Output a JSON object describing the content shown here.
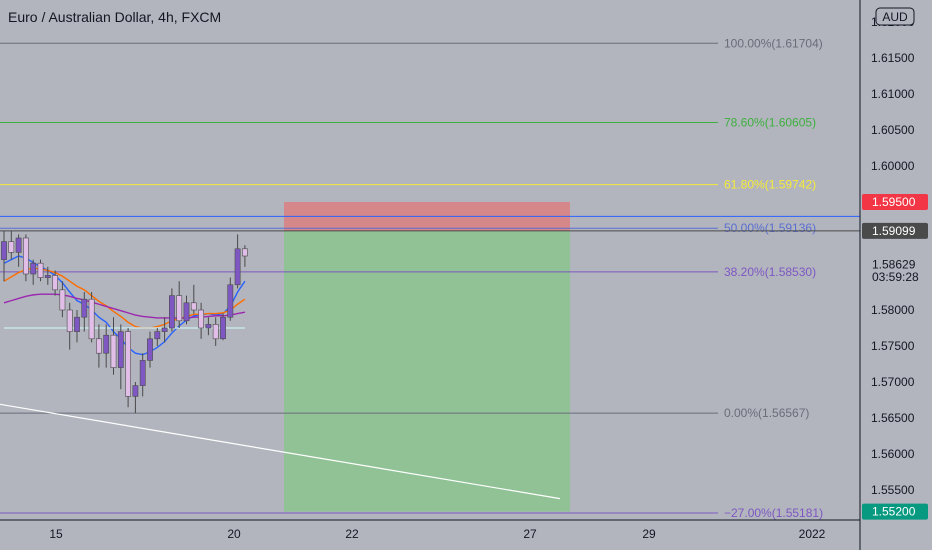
{
  "title": "Euro / Australian Dollar, 4h, FXCM",
  "currency_label": "AUD",
  "chart_data": {
    "type": "candlestick",
    "title": "Euro / Australian Dollar, 4h, FXCM",
    "y_axis": {
      "ticks": [
        "1.62000",
        "1.61500",
        "1.61000",
        "1.60500",
        "1.60000",
        "1.58000",
        "1.57500",
        "1.57000",
        "1.56500",
        "1.56000",
        "1.55500"
      ],
      "ylim": [
        1.55,
        1.62
      ]
    },
    "x_axis": {
      "ticks": [
        "15",
        "20",
        "22",
        "27",
        "29",
        "2022"
      ]
    },
    "price_labels": [
      {
        "text": "1.59500",
        "price": 1.595,
        "color": "#f23645"
      },
      {
        "text": "1.59099",
        "price": 1.59099,
        "color": "#4a4a4a"
      },
      {
        "text": "1.58629",
        "price": 1.58629,
        "color": "#b2b5be",
        "text_color": "#131722"
      },
      {
        "text": "03:59:28",
        "price": 1.5846,
        "color": "#b2b5be",
        "text_color": "#131722"
      },
      {
        "text": "1.55200",
        "price": 1.552,
        "color": "#089981"
      }
    ],
    "fibonacci": [
      {
        "label": "100.00%(1.61704)",
        "price": 1.61704,
        "color": "#6a6d78"
      },
      {
        "label": "78.60%(1.60605)",
        "price": 1.60605,
        "color": "#3eb03e"
      },
      {
        "label": "61.80%(1.59742)",
        "price": 1.59742,
        "color": "#f5ea3a"
      },
      {
        "label": "50.00%(1.59136)",
        "price": 1.59136,
        "color": "#5b6fd0"
      },
      {
        "label": "38.20%(1.58530)",
        "price": 1.5853,
        "color": "#7e57c2"
      },
      {
        "label": "0.00%(1.56567)",
        "price": 1.56567,
        "color": "#6a6d78"
      },
      {
        "label": "−27.00%(1.55181)",
        "price": 1.55181,
        "color": "#7e57c2"
      }
    ],
    "horizontal_lines": [
      {
        "price": 1.593,
        "color": "#2962ff"
      },
      {
        "price": 1.59099,
        "color": "#4a4a4a"
      }
    ],
    "position": {
      "entry": 1.59099,
      "stop": 1.595,
      "target": 1.552
    },
    "candles": [
      {
        "o": 1.587,
        "h": 1.591,
        "l": 1.584,
        "c": 1.5895
      },
      {
        "o": 1.5895,
        "h": 1.591,
        "l": 1.587,
        "c": 1.588
      },
      {
        "o": 1.588,
        "h": 1.5905,
        "l": 1.586,
        "c": 1.59
      },
      {
        "o": 1.59,
        "h": 1.5905,
        "l": 1.584,
        "c": 1.585
      },
      {
        "o": 1.585,
        "h": 1.587,
        "l": 1.5835,
        "c": 1.5865
      },
      {
        "o": 1.5865,
        "h": 1.587,
        "l": 1.584,
        "c": 1.5845
      },
      {
        "o": 1.5845,
        "h": 1.586,
        "l": 1.5835,
        "c": 1.5848
      },
      {
        "o": 1.5848,
        "h": 1.5855,
        "l": 1.582,
        "c": 1.5828
      },
      {
        "o": 1.5828,
        "h": 1.584,
        "l": 1.579,
        "c": 1.58
      },
      {
        "o": 1.58,
        "h": 1.581,
        "l": 1.5745,
        "c": 1.577
      },
      {
        "o": 1.577,
        "h": 1.58,
        "l": 1.5755,
        "c": 1.579
      },
      {
        "o": 1.579,
        "h": 1.5825,
        "l": 1.577,
        "c": 1.5815
      },
      {
        "o": 1.5815,
        "h": 1.5825,
        "l": 1.5755,
        "c": 1.576
      },
      {
        "o": 1.576,
        "h": 1.578,
        "l": 1.572,
        "c": 1.574
      },
      {
        "o": 1.574,
        "h": 1.578,
        "l": 1.572,
        "c": 1.5765
      },
      {
        "o": 1.5765,
        "h": 1.579,
        "l": 1.571,
        "c": 1.572
      },
      {
        "o": 1.572,
        "h": 1.578,
        "l": 1.569,
        "c": 1.577
      },
      {
        "o": 1.577,
        "h": 1.5775,
        "l": 1.5665,
        "c": 1.568
      },
      {
        "o": 1.568,
        "h": 1.57,
        "l": 1.56567,
        "c": 1.5695
      },
      {
        "o": 1.5695,
        "h": 1.574,
        "l": 1.568,
        "c": 1.573
      },
      {
        "o": 1.573,
        "h": 1.577,
        "l": 1.572,
        "c": 1.576
      },
      {
        "o": 1.576,
        "h": 1.5775,
        "l": 1.575,
        "c": 1.577
      },
      {
        "o": 1.577,
        "h": 1.579,
        "l": 1.5755,
        "c": 1.5775
      },
      {
        "o": 1.5775,
        "h": 1.583,
        "l": 1.577,
        "c": 1.582
      },
      {
        "o": 1.582,
        "h": 1.584,
        "l": 1.5775,
        "c": 1.5785
      },
      {
        "o": 1.5785,
        "h": 1.582,
        "l": 1.578,
        "c": 1.581
      },
      {
        "o": 1.581,
        "h": 1.5835,
        "l": 1.5795,
        "c": 1.58
      },
      {
        "o": 1.58,
        "h": 1.581,
        "l": 1.576,
        "c": 1.5775
      },
      {
        "o": 1.5775,
        "h": 1.579,
        "l": 1.5765,
        "c": 1.578
      },
      {
        "o": 1.578,
        "h": 1.579,
        "l": 1.575,
        "c": 1.576
      },
      {
        "o": 1.576,
        "h": 1.5795,
        "l": 1.5758,
        "c": 1.579
      },
      {
        "o": 1.579,
        "h": 1.5845,
        "l": 1.5785,
        "c": 1.5835
      },
      {
        "o": 1.5835,
        "h": 1.5905,
        "l": 1.583,
        "c": 1.5885
      },
      {
        "o": 1.5885,
        "h": 1.589,
        "l": 1.586,
        "c": 1.5875
      }
    ],
    "moving_averages": [
      {
        "color": "#2962ff",
        "values": [
          1.5865,
          1.587,
          1.5875,
          1.5872,
          1.5866,
          1.586,
          1.5855,
          1.5848,
          1.5838,
          1.5825,
          1.5813,
          1.5808,
          1.58,
          1.579,
          1.5783,
          1.577,
          1.576,
          1.5748,
          1.574,
          1.5738,
          1.5742,
          1.5748,
          1.5756,
          1.5768,
          1.5778,
          1.5786,
          1.5792,
          1.5793,
          1.5795,
          1.5793,
          1.5795,
          1.5805,
          1.5825,
          1.584
        ]
      },
      {
        "color": "#ff6d00",
        "values": [
          1.584,
          1.5846,
          1.5852,
          1.5856,
          1.5858,
          1.5857,
          1.5855,
          1.5852,
          1.5847,
          1.584,
          1.5833,
          1.5828,
          1.582,
          1.5812,
          1.5806,
          1.5798,
          1.5791,
          1.5783,
          1.5777,
          1.5775,
          1.5775,
          1.5777,
          1.578,
          1.5785,
          1.5788,
          1.5791,
          1.5794,
          1.5794,
          1.5795,
          1.5795,
          1.5796,
          1.58,
          1.5808,
          1.5815
        ]
      },
      {
        "color": "#9c27b0",
        "values": [
          1.581,
          1.5813,
          1.5816,
          1.5819,
          1.5821,
          1.5822,
          1.5822,
          1.5822,
          1.5821,
          1.5819,
          1.5816,
          1.5814,
          1.5811,
          1.5808,
          1.5805,
          1.5802,
          1.5799,
          1.5796,
          1.5793,
          1.5791,
          1.579,
          1.5789,
          1.5789,
          1.5789,
          1.5789,
          1.5789,
          1.579,
          1.579,
          1.5791,
          1.5792,
          1.5792,
          1.5793,
          1.5795,
          1.5797
        ]
      },
      {
        "color": "#c8e6e8",
        "values": [
          1.5775,
          1.5775,
          1.5775,
          1.5775,
          1.5775,
          1.5775,
          1.5775,
          1.5775,
          1.5775,
          1.5775,
          1.5775,
          1.5775,
          1.5775,
          1.5775,
          1.5775,
          1.5775,
          1.5775,
          1.5775,
          1.5775,
          1.5775,
          1.5775,
          1.5775,
          1.5775,
          1.5775,
          1.5775,
          1.5775,
          1.5775,
          1.5775,
          1.5775,
          1.5775,
          1.5775,
          1.5775,
          1.5775,
          1.5775
        ]
      }
    ],
    "trendline": {
      "color": "#ffffff",
      "from": {
        "x": "left-edge",
        "y": 1.5669
      },
      "to": {
        "x": "after-27",
        "y": 1.5538
      }
    },
    "grid": false,
    "colors": {
      "background": "#b2b5be",
      "up": "#7e57c2",
      "down": "#e1bee7",
      "wick": "#4a4a4a",
      "stop_zone": "#e57373",
      "target_zone": "#81c784"
    }
  }
}
